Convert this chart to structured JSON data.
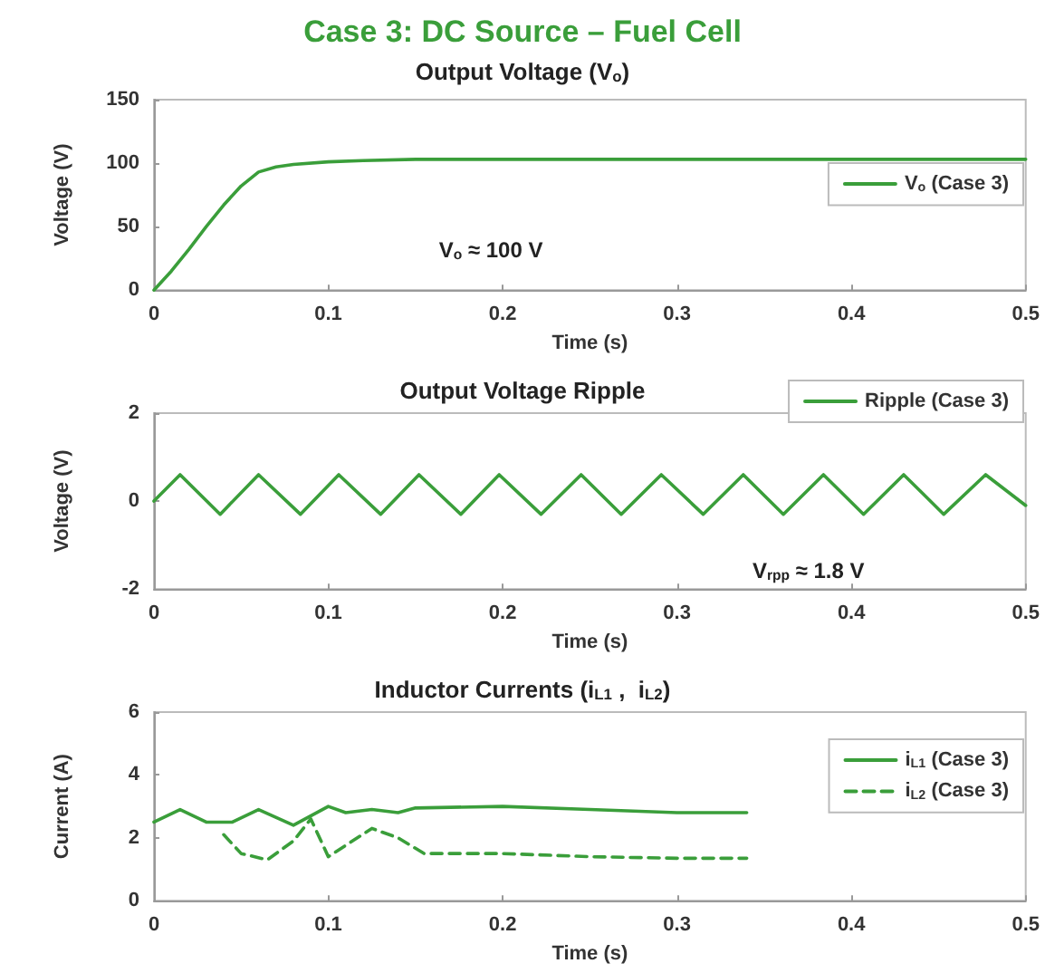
{
  "chart_data": [
    {
      "type": "line",
      "title": "Case 3: DC Source – Fuel Cell",
      "subtitle": "Output Voltage (V$_{o}$)",
      "xlabel": "Time (s)",
      "ylabel": "Voltage (V)",
      "x": [
        0,
        0.01,
        0.02,
        0.03,
        0.04,
        0.05,
        0.06,
        0.07,
        0.08,
        0.1,
        0.12,
        0.15,
        0.2,
        0.3,
        0.4,
        0.5
      ],
      "series": [
        {
          "name": "V$_{o}$ (Case 3)",
          "color": "#3a9e3a",
          "values": [
            0,
            15,
            32,
            50,
            67,
            82,
            93,
            97,
            99,
            101,
            102,
            103,
            103,
            103,
            103,
            103
          ]
        }
      ],
      "xlim": [
        0,
        0.5
      ],
      "xticks": [
        0,
        0.1,
        0.2,
        0.3,
        0.4,
        0.5
      ],
      "ylim": [
        0,
        150
      ],
      "yticks": [
        0,
        50,
        100,
        150
      ],
      "annotations": [
        "V$_{o}$ ≈ 100 V"
      ],
      "grid": false,
      "legend": "right",
      "marker": "none",
      "line_style": "solid"
    },
    {
      "type": "line",
      "title": "Output Voltage Ripple",
      "xlabel": "Time (s)",
      "ylabel": "Voltage (V)",
      "x": [
        0,
        0.015,
        0.038,
        0.06,
        0.084,
        0.106,
        0.13,
        0.152,
        0.176,
        0.198,
        0.222,
        0.245,
        0.268,
        0.291,
        0.315,
        0.338,
        0.361,
        0.384,
        0.407,
        0.43,
        0.453,
        0.477,
        0.5
      ],
      "series": [
        {
          "name": "Ripple (Case 3)",
          "color": "#3a9e3a",
          "values": [
            0,
            0.6,
            -0.3,
            0.6,
            -0.3,
            0.6,
            -0.3,
            0.6,
            -0.3,
            0.6,
            -0.3,
            0.6,
            -0.3,
            0.6,
            -0.3,
            0.6,
            -0.3,
            0.6,
            -0.3,
            0.6,
            -0.3,
            0.6,
            -0.1
          ]
        }
      ],
      "xlim": [
        0,
        0.5
      ],
      "xticks": [
        0,
        0.1,
        0.2,
        0.3,
        0.4,
        0.5
      ],
      "ylim": [
        -2,
        2
      ],
      "yticks": [
        -2,
        0,
        2
      ],
      "annotations": [
        "V$_{rpp}$ ≈ 1.8 V"
      ],
      "grid": false,
      "legend": "top right",
      "marker": "none",
      "line_style": "solid"
    },
    {
      "type": "line",
      "title": "Inductor Currents (i$_{L1}$ ,  i$_{L2}$)",
      "xlabel": "Time (s)",
      "ylabel": "Current (A)",
      "series": [
        {
          "name": "i$_{L1}$ (Case 3)",
          "color": "#3a9e3a",
          "line_style": "solid",
          "x": [
            0,
            0.015,
            0.03,
            0.045,
            0.06,
            0.08,
            0.1,
            0.11,
            0.125,
            0.14,
            0.15,
            0.2,
            0.25,
            0.3,
            0.34
          ],
          "values": [
            2.5,
            2.9,
            2.5,
            2.5,
            2.9,
            2.4,
            3.0,
            2.8,
            2.9,
            2.8,
            2.95,
            3.0,
            2.9,
            2.8,
            2.8
          ]
        },
        {
          "name": "i$_{L2}$ (Case 3)",
          "color": "#3a9e3a",
          "line_style": "dashed",
          "x": [
            0.04,
            0.05,
            0.065,
            0.08,
            0.09,
            0.1,
            0.125,
            0.14,
            0.155,
            0.2,
            0.25,
            0.3,
            0.34
          ],
          "values": [
            2.1,
            1.5,
            1.3,
            1.9,
            2.6,
            1.4,
            2.3,
            2.0,
            1.5,
            1.5,
            1.4,
            1.35,
            1.35
          ]
        }
      ],
      "xlim": [
        0,
        0.5
      ],
      "xticks": [
        0,
        0.1,
        0.2,
        0.3,
        0.4,
        0.5
      ],
      "ylim": [
        0,
        6
      ],
      "yticks": [
        0,
        2,
        4,
        6
      ],
      "grid": false,
      "legend": "right",
      "marker": "none"
    }
  ]
}
